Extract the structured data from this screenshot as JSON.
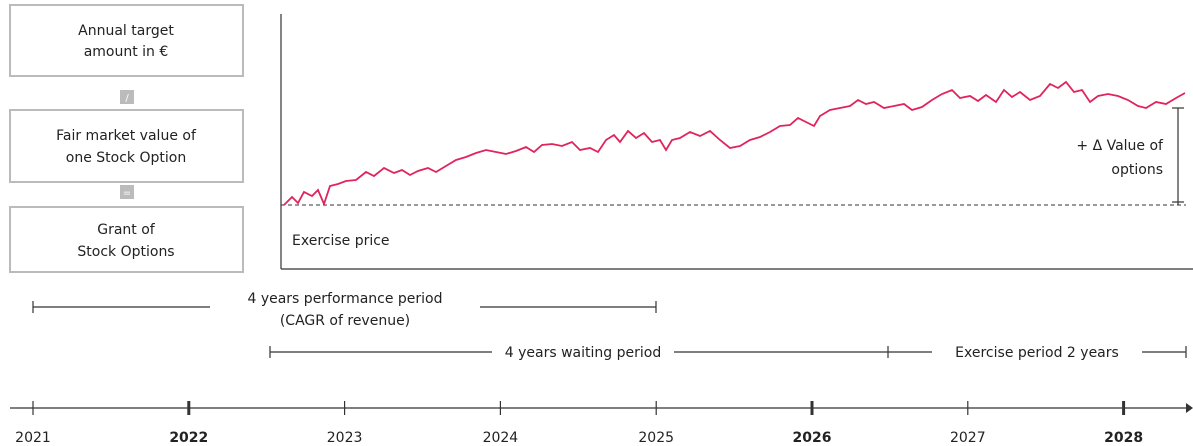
{
  "boxes": [
    {
      "lines": [
        "Annual target",
        "amount in €"
      ]
    },
    {
      "lines": [
        "Fair market value of",
        "one Stock Option"
      ]
    },
    {
      "lines": [
        "Grant of",
        "Stock Options"
      ]
    }
  ],
  "operators": [
    "/",
    "="
  ],
  "chart": {
    "exercise_price": "Exercise price",
    "delta_label": [
      "+ Δ Value of",
      "options"
    ]
  },
  "periods": {
    "performance": [
      "4 years performance period",
      "(CAGR of revenue)"
    ],
    "waiting": "4 years waiting period",
    "exercise": "Exercise period 2 years"
  },
  "timeline": [
    {
      "label": "2021",
      "bold": false
    },
    {
      "label": "2022",
      "bold": true
    },
    {
      "label": "2023",
      "bold": false
    },
    {
      "label": "2024",
      "bold": false
    },
    {
      "label": "2025",
      "bold": false
    },
    {
      "label": "2026",
      "bold": true
    },
    {
      "label": "2027",
      "bold": false
    },
    {
      "label": "2028",
      "bold": true
    }
  ]
}
